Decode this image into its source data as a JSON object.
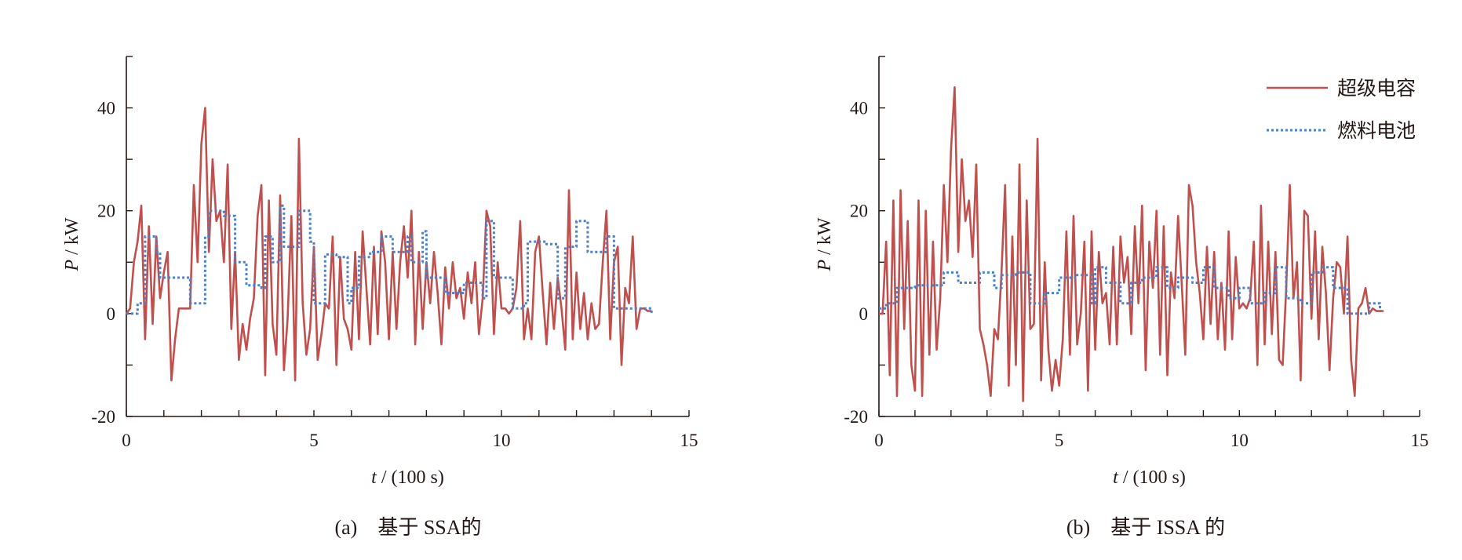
{
  "chart_data": [
    {
      "type": "line",
      "caption": "(a)　基于 SSA的",
      "xlabel_var": "t",
      "xlabel_unit": " / (100 s)",
      "ylabel_var": "P",
      "ylabel_unit": " / kW",
      "xlim": [
        0,
        15
      ],
      "ylim": [
        -20,
        50
      ],
      "xticks": [
        0,
        5,
        10,
        15
      ],
      "yticks": [
        -20,
        0,
        20,
        40
      ],
      "grid": false,
      "legend": null,
      "series": [
        {
          "name": "超级电容",
          "color": "#c0504d",
          "style": "solid",
          "x_start": 0,
          "x_step": 0.1,
          "values": [
            0,
            1,
            10,
            14,
            21,
            -5,
            17,
            -2,
            15,
            3,
            8,
            12,
            -13,
            -5,
            1,
            1,
            1,
            1,
            25,
            10,
            33,
            40,
            12,
            30,
            18,
            20,
            10,
            29,
            -3,
            12,
            -9,
            -2,
            -7,
            -1,
            3,
            19,
            25,
            -12,
            22,
            -2,
            -8,
            23,
            -11,
            -1,
            19,
            -13,
            34,
            2,
            -8,
            -3,
            13,
            -9,
            -4,
            2,
            1,
            15,
            -10,
            11,
            -1,
            -3,
            -7,
            12,
            -5,
            16,
            5,
            -6,
            13,
            -4,
            16,
            10,
            -5,
            12,
            -3,
            10,
            17,
            7,
            20,
            -6,
            12,
            -3,
            10,
            2,
            12,
            4,
            -6,
            9,
            1,
            10,
            3,
            5,
            -1,
            8,
            2,
            10,
            -4,
            3,
            20,
            17,
            -4,
            10,
            1,
            1,
            0,
            1,
            5,
            18,
            -5,
            1,
            -5,
            12,
            15,
            4,
            -6,
            6,
            -3,
            7,
            1,
            -7,
            24,
            -5,
            8,
            -3,
            4,
            -5,
            2,
            -3,
            -2,
            10,
            20,
            -5,
            10,
            13,
            -10,
            5,
            2,
            15,
            -3,
            1,
            1,
            0.5,
            0.5
          ]
        },
        {
          "name": "燃料电池",
          "color": "#4a7fc9",
          "style": "dotted",
          "steps": [
            [
              0,
              0
            ],
            [
              0.3,
              2
            ],
            [
              0.5,
              15
            ],
            [
              0.8,
              12
            ],
            [
              0.9,
              7
            ],
            [
              1.4,
              7
            ],
            [
              1.7,
              2
            ],
            [
              2.0,
              2
            ],
            [
              2.1,
              15
            ],
            [
              2.2,
              20
            ],
            [
              2.6,
              19
            ],
            [
              2.9,
              10
            ],
            [
              3.2,
              5.5
            ],
            [
              3.6,
              5
            ],
            [
              3.7,
              15
            ],
            [
              3.9,
              10
            ],
            [
              4.1,
              21
            ],
            [
              4.2,
              13
            ],
            [
              4.5,
              13
            ],
            [
              4.6,
              20
            ],
            [
              4.9,
              14
            ],
            [
              5.0,
              2
            ],
            [
              5.3,
              11.5
            ],
            [
              5.6,
              11
            ],
            [
              5.9,
              2
            ],
            [
              6.0,
              5
            ],
            [
              6.2,
              11
            ],
            [
              6.5,
              12
            ],
            [
              6.8,
              15
            ],
            [
              7.1,
              12
            ],
            [
              7.5,
              15
            ],
            [
              7.6,
              10
            ],
            [
              7.9,
              16
            ],
            [
              8.0,
              7
            ],
            [
              8.5,
              4
            ],
            [
              9.0,
              6
            ],
            [
              9.5,
              3
            ],
            [
              9.6,
              18
            ],
            [
              9.8,
              7
            ],
            [
              10.3,
              1
            ],
            [
              10.6,
              2
            ],
            [
              10.7,
              14
            ],
            [
              11.2,
              13.5
            ],
            [
              11.5,
              3
            ],
            [
              11.7,
              13
            ],
            [
              12.0,
              18
            ],
            [
              12.3,
              12
            ],
            [
              12.8,
              15
            ],
            [
              13.0,
              1
            ],
            [
              13.6,
              1
            ],
            [
              14.0,
              0
            ]
          ]
        }
      ]
    },
    {
      "type": "line",
      "caption": "(b)　基于 ISSA 的",
      "xlabel_var": "t",
      "xlabel_unit": " / (100 s)",
      "ylabel_var": "P",
      "ylabel_unit": " / kW",
      "xlim": [
        0,
        15
      ],
      "ylim": [
        -20,
        50
      ],
      "xticks": [
        0,
        5,
        10,
        15
      ],
      "yticks": [
        -20,
        0,
        20,
        40
      ],
      "grid": false,
      "legend": "top-right",
      "series": [
        {
          "name": "超级电容",
          "color": "#c0504d",
          "style": "solid",
          "x_start": 0,
          "x_step": 0.1,
          "values": [
            0,
            0,
            14,
            -12,
            22,
            -16,
            24,
            -3,
            18,
            -10,
            -15,
            22,
            -16,
            20,
            -8,
            14,
            -7,
            3,
            25,
            10,
            32,
            44,
            12,
            30,
            18,
            22,
            11,
            29,
            -3,
            -6,
            -10,
            -16,
            -3,
            -5,
            8,
            25,
            -14,
            15,
            -10,
            29,
            -17,
            22,
            -3,
            -2,
            34,
            -13,
            10,
            -7,
            -15,
            -9,
            -14,
            -5,
            16,
            -8,
            19,
            -6,
            0,
            14,
            -15,
            16,
            -7,
            12,
            2,
            4,
            -6,
            13,
            -6,
            15,
            6,
            11,
            -4,
            17,
            2,
            21,
            -11,
            14,
            5,
            20,
            -8,
            17,
            -12,
            8,
            3,
            19,
            6,
            -8,
            25,
            21,
            10,
            4,
            -5,
            13,
            -2,
            12,
            -5,
            6,
            -7,
            16,
            -5,
            11,
            1,
            2,
            1,
            3,
            14,
            -10,
            21,
            -6,
            14,
            -4,
            12,
            -9,
            -10,
            5,
            25,
            3,
            10,
            -13,
            20,
            19,
            -1,
            16,
            -5,
            13,
            4,
            -11,
            3,
            10,
            9,
            0,
            15,
            -9,
            -16,
            1,
            2,
            5,
            0,
            1,
            0.5,
            0.5,
            0.5
          ]
        },
        {
          "name": "燃料电池",
          "color": "#4a7fc9",
          "style": "dotted",
          "steps": [
            [
              0,
              1
            ],
            [
              0.2,
              2
            ],
            [
              0.5,
              5
            ],
            [
              1.0,
              5.5
            ],
            [
              1.5,
              5.5
            ],
            [
              1.8,
              8
            ],
            [
              2.2,
              6
            ],
            [
              2.8,
              8
            ],
            [
              3.2,
              5
            ],
            [
              3.4,
              7.5
            ],
            [
              3.8,
              8
            ],
            [
              4.2,
              2
            ],
            [
              4.6,
              4
            ],
            [
              5.0,
              7
            ],
            [
              5.5,
              7.5
            ],
            [
              5.9,
              2
            ],
            [
              6.0,
              9
            ],
            [
              6.3,
              6
            ],
            [
              6.7,
              2
            ],
            [
              7.0,
              6
            ],
            [
              7.3,
              7
            ],
            [
              7.7,
              9
            ],
            [
              8.0,
              5
            ],
            [
              8.3,
              7
            ],
            [
              8.7,
              6
            ],
            [
              9.0,
              9
            ],
            [
              9.3,
              5
            ],
            [
              9.7,
              3
            ],
            [
              10.0,
              5
            ],
            [
              10.3,
              2
            ],
            [
              10.7,
              4
            ],
            [
              11.0,
              9
            ],
            [
              11.3,
              3
            ],
            [
              11.7,
              2
            ],
            [
              12.0,
              8
            ],
            [
              12.3,
              9
            ],
            [
              12.6,
              5
            ],
            [
              13.0,
              0
            ],
            [
              13.6,
              2
            ],
            [
              13.9,
              1
            ]
          ]
        }
      ]
    }
  ]
}
